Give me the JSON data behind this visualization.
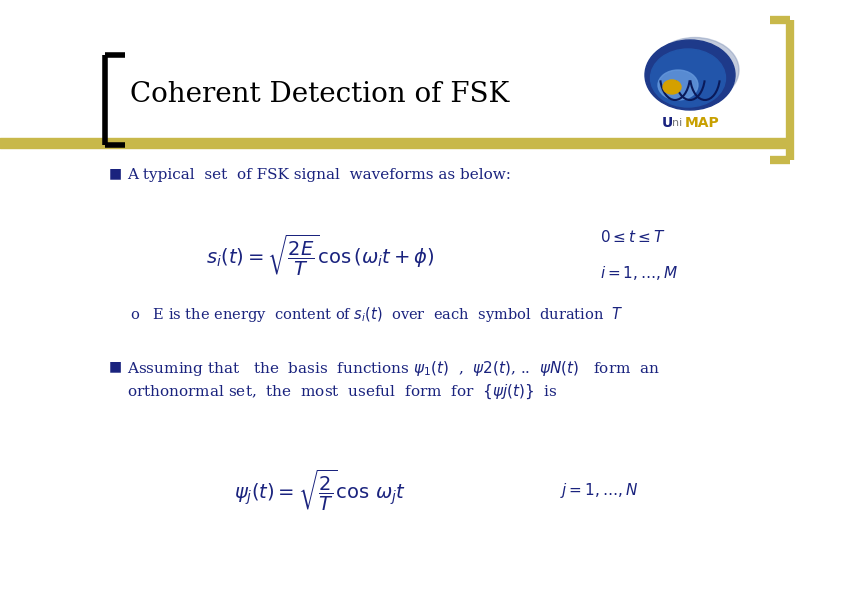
{
  "title": "Coherent Detection of FSK",
  "title_color": "#000000",
  "title_fontsize": 20,
  "bg_color": "#ffffff",
  "accent_color": "#c8b84a",
  "bracket_color": "#000000",
  "text_color": "#1a237e",
  "bullet_color": "#1a237e",
  "bullet1": "A typical  set  of FSK signal  waveforms as below:",
  "bullet2_line1": "Assuming that   the  basis  functions $\\psi_1(t)$  ,  $\\psi2(t)$, ..  $\\psi N(t)$   form  an",
  "bullet2_line2": "orthonormal set,  the  most  useful  form  for  $\\{\\psi j(t)\\}$  is",
  "eq1": "$s_i(t) = \\sqrt{\\dfrac{2E}{T}} \\cos\\left(\\omega_i t + \\phi\\right)$",
  "eq1c1": "$0 \\leq t \\leq T$",
  "eq1c2": "$i = 1, \\ldots, M$",
  "sub1": "o   E is the energy  content of $s_i(t)$  over  each  symbol  duration  $T$",
  "eq2": "$\\psi_j(t) = \\sqrt{\\dfrac{2}{T}} \\cos\\, \\omega_j t$",
  "eq2_right": "$j = 1, \\ldots, N$"
}
